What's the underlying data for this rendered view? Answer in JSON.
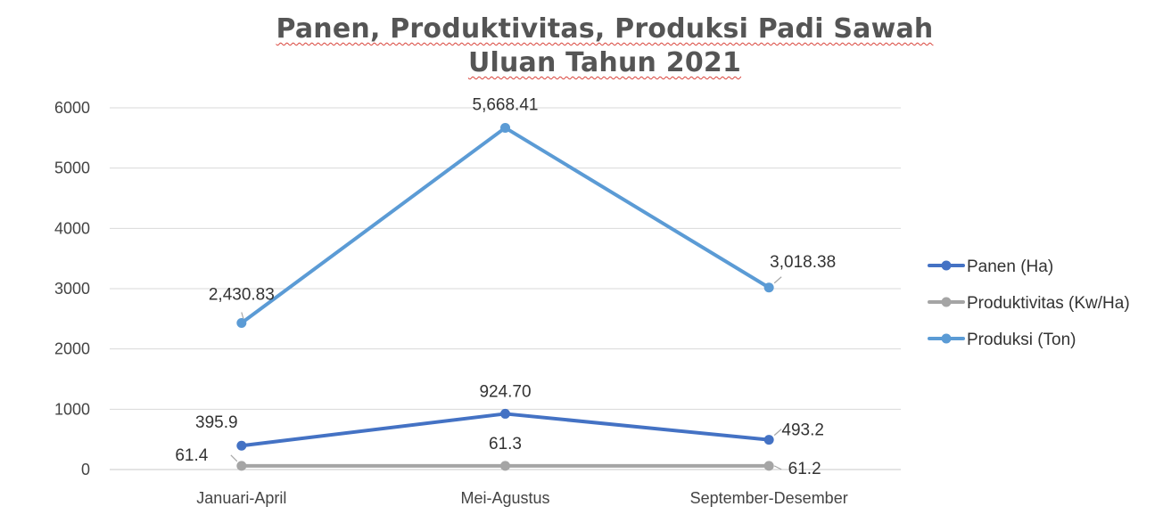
{
  "chart_data": {
    "type": "line",
    "title_line1": "Panen, Produktivitas, Produksi Padi Sawah",
    "title_line2": "Uluan Tahun 2021",
    "categories": [
      "Januari-April",
      "Mei-Agustus",
      "September-Desember"
    ],
    "ylim": [
      0,
      6000
    ],
    "yticks": [
      "0",
      "1000",
      "2000",
      "3000",
      "4000",
      "5000",
      "6000"
    ],
    "grid": true,
    "legend_position": "right",
    "series": [
      {
        "name": "Panen (Ha)",
        "color": "#4472c4",
        "values": [
          395.9,
          924.7,
          493.2
        ],
        "labels": [
          "395.9",
          "924.70",
          "493.2"
        ]
      },
      {
        "name": "Produktivitas (Kw/Ha)",
        "color": "#a5a5a5",
        "values": [
          61.4,
          61.3,
          61.2
        ],
        "labels": [
          "61.4",
          "61.3",
          "61.2"
        ]
      },
      {
        "name": "Produksi (Ton)",
        "color": "#5b9bd5",
        "values": [
          2430.83,
          5668.41,
          3018.38
        ],
        "labels": [
          "2,430.83",
          "5,668.41",
          "3,018.38"
        ]
      }
    ]
  }
}
